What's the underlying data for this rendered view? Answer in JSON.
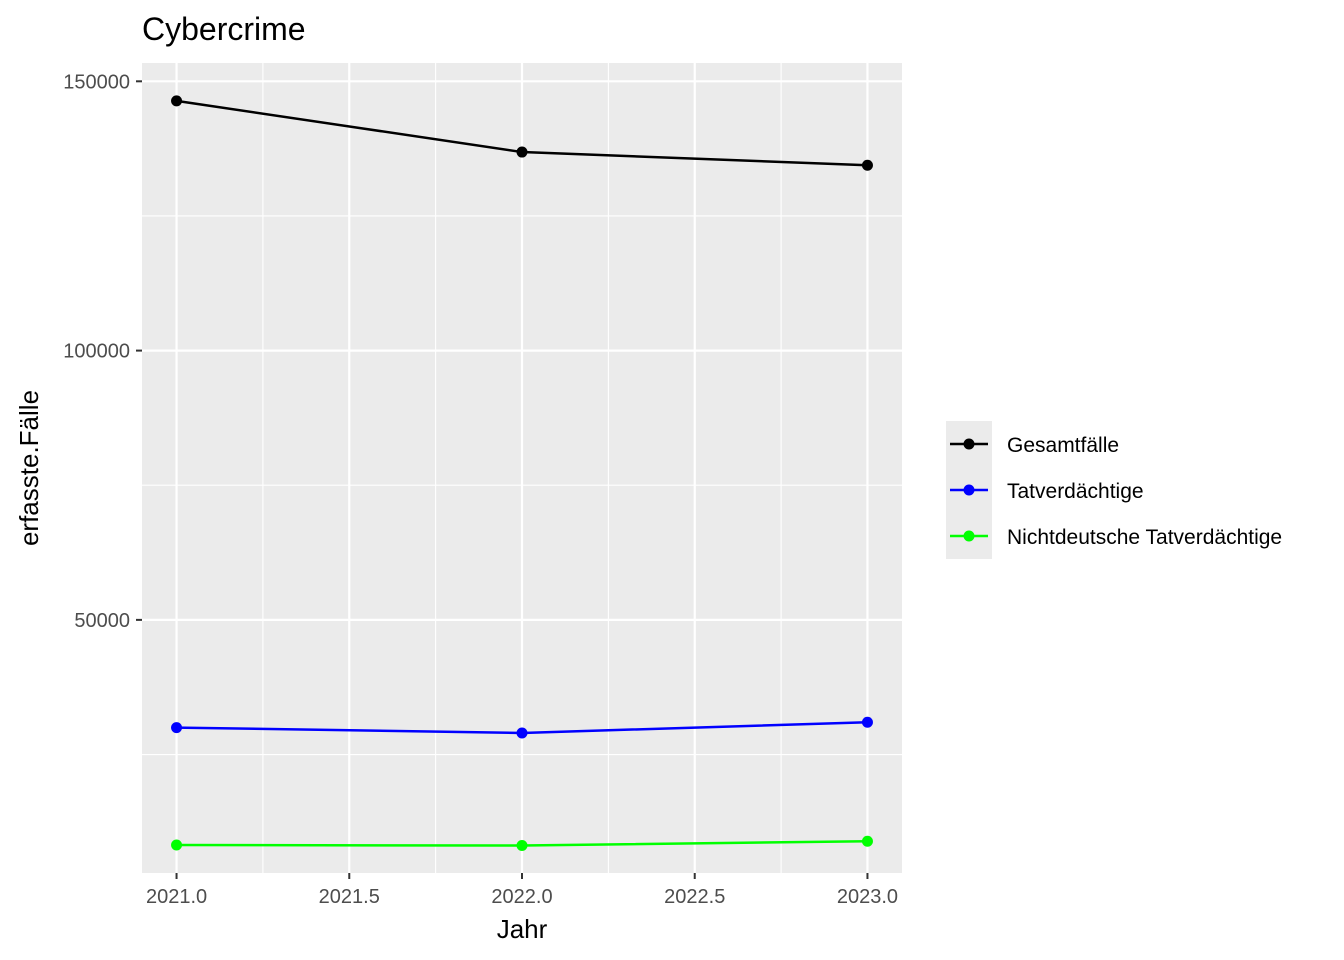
{
  "chart_data": {
    "type": "line",
    "title": "Cybercrime",
    "xlabel": "Jahr",
    "ylabel": "erfasste.Fälle",
    "x": [
      2021,
      2022,
      2023
    ],
    "xlim": [
      2020.9,
      2023.1
    ],
    "ylim": [
      3000,
      153400
    ],
    "x_ticks": [
      2021.0,
      2021.5,
      2022.0,
      2022.5,
      2023.0
    ],
    "x_tick_labels": [
      "2021.0",
      "2021.5",
      "2022.0",
      "2022.5",
      "2023.0"
    ],
    "y_ticks": [
      50000,
      100000,
      150000
    ],
    "y_tick_labels": [
      "50000",
      "100000",
      "150000"
    ],
    "grid": true,
    "legend_position": "right",
    "series": [
      {
        "name": "Gesamtfälle",
        "color": "#000000",
        "values": [
          146363,
          136865,
          134407
        ]
      },
      {
        "name": "Tatverdächtige",
        "color": "#0000ff",
        "values": [
          30000,
          29000,
          31000
        ]
      },
      {
        "name": "Nichtdeutsche Tatverdächtige",
        "color": "#00ff00",
        "values": [
          8200,
          8100,
          8900
        ]
      }
    ]
  }
}
